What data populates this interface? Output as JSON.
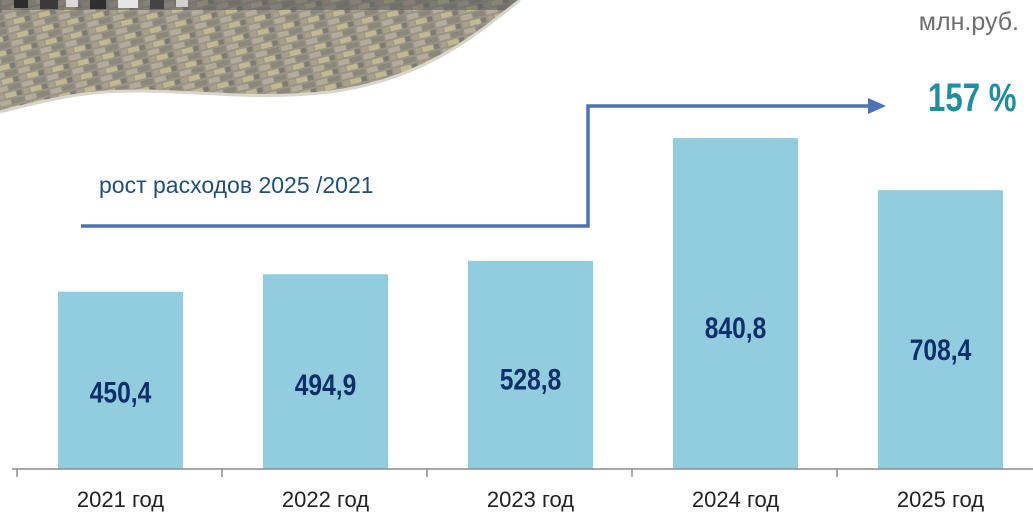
{
  "unit_label": "млн.руб.",
  "growth": {
    "label": "рост расходов 2025 /2021",
    "value": "157 %"
  },
  "colors": {
    "bar": "#92cddf",
    "value_text": "#0f2f6b",
    "arrow": "#4b74b8",
    "growth_value": "#1f8ea0",
    "axis": "#8c8c8c"
  },
  "chart_data": {
    "type": "bar",
    "categories": [
      "2021 год",
      "2022 год",
      "2023 год",
      "2024 год",
      "2025 год"
    ],
    "values": [
      450.4,
      494.9,
      528.8,
      840.8,
      708.4
    ],
    "value_labels": [
      "450,4",
      "494,9",
      "528,8",
      "840,8",
      "708,4"
    ],
    "ylim": [
      0,
      900
    ],
    "grid": false
  }
}
